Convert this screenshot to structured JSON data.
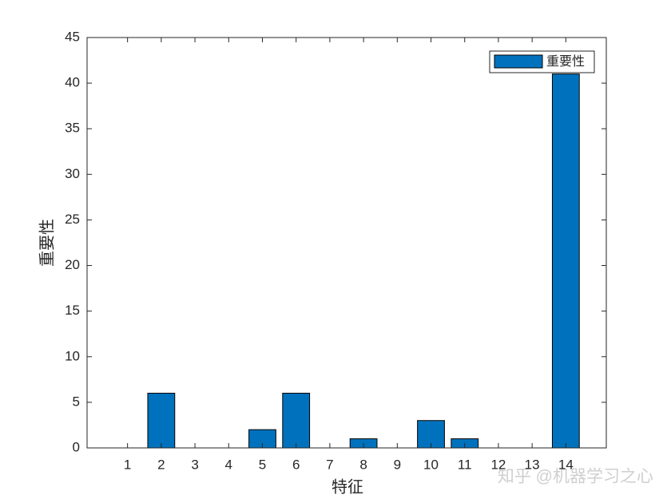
{
  "chart_data": {
    "type": "bar",
    "xlabel": "特征",
    "ylabel": "重要性",
    "x": [
      1,
      2,
      3,
      4,
      5,
      6,
      7,
      8,
      9,
      10,
      11,
      12,
      13,
      14
    ],
    "series": [
      {
        "name": "重要性",
        "color": "#0072bd",
        "values": [
          0,
          6,
          0,
          0,
          2,
          6,
          0,
          1,
          0,
          3,
          1,
          0,
          0,
          41
        ]
      }
    ],
    "xlim": [
      -0.2,
      15.2
    ],
    "xticks": [
      1,
      2,
      3,
      4,
      5,
      6,
      7,
      8,
      9,
      10,
      11,
      12,
      13,
      14
    ],
    "ylim": [
      0,
      45
    ],
    "yticks": [
      0,
      5,
      10,
      15,
      20,
      25,
      30,
      35,
      40,
      45
    ],
    "legend": "top-right",
    "grid": false
  },
  "watermark": "知乎 @机器学习之心"
}
